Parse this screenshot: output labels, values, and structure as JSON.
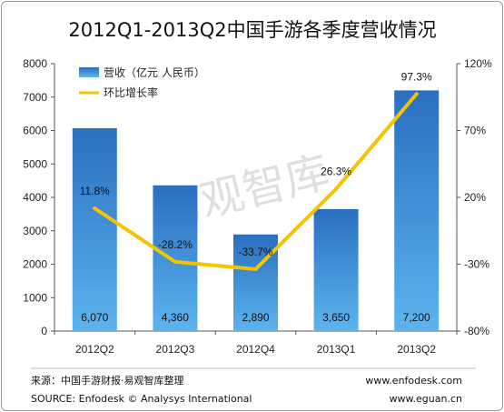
{
  "chart_data": {
    "type": "bar",
    "title": "2012Q1-2013Q2中国手游各季度营收情况",
    "categories": [
      "2012Q2",
      "2012Q3",
      "2012Q4",
      "2013Q1",
      "2013Q2"
    ],
    "series": [
      {
        "name": "营收（亿元  人民币）",
        "values": [
          6070,
          4360,
          2890,
          3650,
          7200
        ],
        "labels": [
          "6,070",
          "4,360",
          "2,890",
          "3,650",
          "7,200"
        ],
        "color": "#2e75c6"
      },
      {
        "name": "环比增长率",
        "type": "line",
        "axis": "right",
        "values": [
          11.8,
          -28.2,
          -33.7,
          26.3,
          97.3
        ],
        "labels": [
          "11.8%",
          "-28.2%",
          "-33.7%",
          "26.3%",
          "97.3%"
        ],
        "color": "#f5c400"
      }
    ],
    "ylim": [
      0,
      8000
    ],
    "yticks": [
      "0",
      "1000",
      "2000",
      "3000",
      "4000",
      "5000",
      "6000",
      "7000",
      "8000"
    ],
    "y2lim": [
      -80,
      120
    ],
    "y2ticks": [
      "-80%",
      "-30%",
      "20%",
      "70%",
      "120%"
    ],
    "legend_position": "top-left",
    "grid": false
  },
  "watermark": "易观智库",
  "footer": {
    "source_cn": "来源：中国手游财报·易观智库整理",
    "source_en": "SOURCE: Enfodesk © Analysys International",
    "url1": "www.enfodesk.com",
    "url2": "www.eguan.cn"
  }
}
